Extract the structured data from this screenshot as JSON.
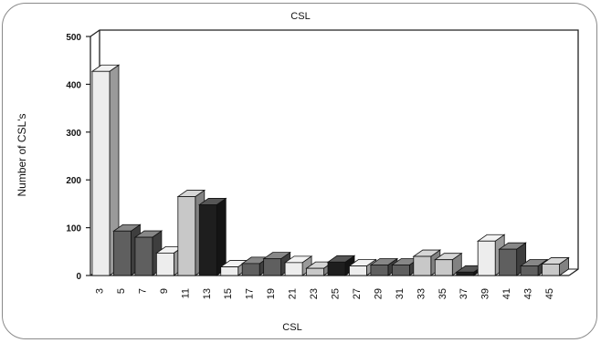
{
  "chart_data": {
    "type": "bar",
    "title": "CSL",
    "xlabel": "CSL",
    "ylabel": "Number of CSL's",
    "ylim": [
      0,
      500
    ],
    "yticks": [
      "0",
      "100",
      "200",
      "300",
      "400",
      "500"
    ],
    "grid": false,
    "style": "3d-bars",
    "categories": [
      "3",
      "5",
      "7",
      "9",
      "11",
      "13",
      "15",
      "17",
      "19",
      "21",
      "23",
      "25",
      "27",
      "29",
      "31",
      "33",
      "35",
      "37",
      "39",
      "41",
      "43",
      "45"
    ],
    "values": [
      427,
      93,
      80,
      47,
      165,
      148,
      18,
      25,
      35,
      27,
      15,
      28,
      20,
      22,
      22,
      40,
      33,
      7,
      72,
      55,
      20,
      24
    ],
    "colors": [
      "#ededed",
      "#5f5f5f",
      "#5f5f5f",
      "#ededed",
      "#c8c8c8",
      "#1e1e1e",
      "#ededed",
      "#5f5f5f",
      "#5f5f5f",
      "#ededed",
      "#c8c8c8",
      "#1e1e1e",
      "#ededed",
      "#5f5f5f",
      "#5f5f5f",
      "#c8c8c8",
      "#c8c8c8",
      "#1e1e1e",
      "#ededed",
      "#5f5f5f",
      "#5f5f5f",
      "#c8c8c8"
    ]
  }
}
